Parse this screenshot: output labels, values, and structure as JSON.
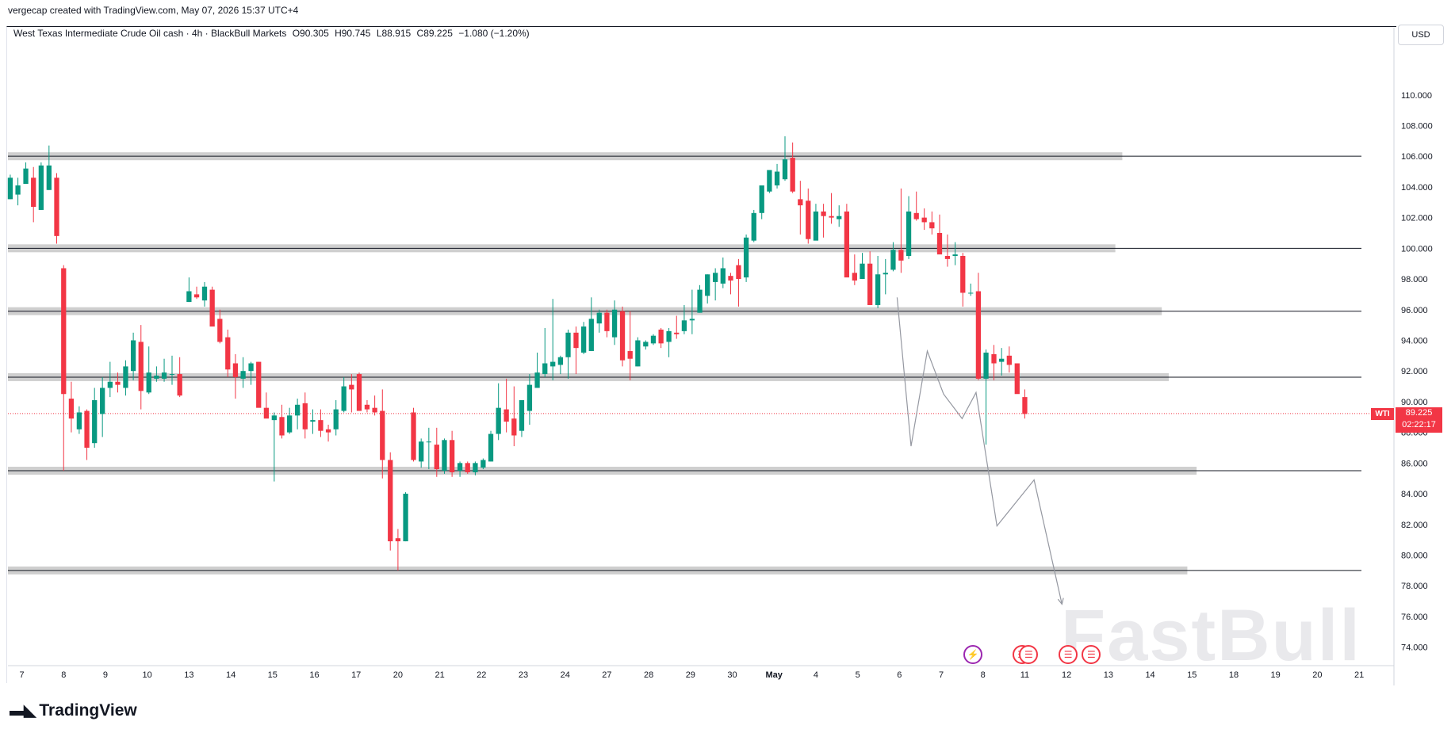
{
  "header": {
    "created_line": "vergecap created with TradingView.com, May 07, 2026 15:37 UTC+4",
    "instrument": "West Texas Intermediate Crude Oil cash · 4h · BlackBull Markets",
    "open": "O90.305",
    "high": "H90.745",
    "low": "L88.915",
    "close": "C89.225",
    "change": "−1.080 (−1.20%)"
  },
  "currency_button": "USD",
  "last_price": {
    "symbol": "WTI",
    "price": "89.225",
    "countdown": "02:22:17",
    "value": 89.225
  },
  "brand": {
    "logo_text": "TradingView",
    "watermark": "FastBull"
  },
  "colors": {
    "up": "#089981",
    "down": "#f23645",
    "zone": "#cfcfcf",
    "level_line": "#131722",
    "projection": "#9598a1"
  },
  "events": [
    {
      "x": 41.5,
      "icon": "lightning-icon",
      "color": "#9c27b0"
    },
    {
      "x": 43.6,
      "icon": "us-flag-icon",
      "color": "#f23645"
    },
    {
      "x": 43.9,
      "icon": "us-flag-icon",
      "color": "#f23645"
    },
    {
      "x": 45.6,
      "icon": "us-flag-icon",
      "color": "#f23645"
    },
    {
      "x": 46.6,
      "icon": "us-flag-icon",
      "color": "#f23645"
    }
  ],
  "chart_data": {
    "type": "candlestick",
    "timeframe": "4h",
    "ylim": [
      73,
      113.5
    ],
    "y_ticks": [
      74,
      76,
      78,
      80,
      82,
      84,
      86,
      88,
      90,
      92,
      94,
      96,
      98,
      100,
      102,
      104,
      106,
      108,
      110
    ],
    "y_tick_labels": [
      "74.000",
      "76.000",
      "78.000",
      "80.000",
      "82.000",
      "84.000",
      "86.000",
      "88.000",
      "90.000",
      "92.000",
      "94.000",
      "96.000",
      "98.000",
      "100.000",
      "102.000",
      "104.000",
      "106.000",
      "108.000",
      "110.000"
    ],
    "x_ticks": [
      {
        "label": "7",
        "x": 0.6
      },
      {
        "label": "8",
        "x": 2.4
      },
      {
        "label": "9",
        "x": 4.2
      },
      {
        "label": "10",
        "x": 6.0
      },
      {
        "label": "13",
        "x": 7.8
      },
      {
        "label": "14",
        "x": 9.6
      },
      {
        "label": "15",
        "x": 11.4
      },
      {
        "label": "16",
        "x": 13.2
      },
      {
        "label": "17",
        "x": 15.0
      },
      {
        "label": "20",
        "x": 16.8
      },
      {
        "label": "21",
        "x": 18.6
      },
      {
        "label": "22",
        "x": 20.4
      },
      {
        "label": "23",
        "x": 22.2
      },
      {
        "label": "24",
        "x": 24.0
      },
      {
        "label": "27",
        "x": 25.8
      },
      {
        "label": "28",
        "x": 27.6
      },
      {
        "label": "29",
        "x": 29.4
      },
      {
        "label": "30",
        "x": 31.2
      },
      {
        "label": "May",
        "x": 33.0
      },
      {
        "label": "4",
        "x": 34.8
      },
      {
        "label": "5",
        "x": 36.6
      },
      {
        "label": "6",
        "x": 38.4
      },
      {
        "label": "7",
        "x": 40.2
      },
      {
        "label": "8",
        "x": 42.0
      },
      {
        "label": "11",
        "x": 43.8
      },
      {
        "label": "12",
        "x": 45.6
      },
      {
        "label": "13",
        "x": 47.4
      },
      {
        "label": "14",
        "x": 49.2
      },
      {
        "label": "15",
        "x": 51.0
      },
      {
        "label": "18",
        "x": 52.8
      },
      {
        "label": "19",
        "x": 54.6
      },
      {
        "label": "20",
        "x": 56.4
      },
      {
        "label": "21",
        "x": 58.2
      }
    ],
    "x_range": [
      0,
      59.7
    ],
    "candles": [
      [
        0.1,
        104.8,
        103.2,
        103.2,
        104.6
      ],
      [
        0.43,
        104.6,
        102.8,
        103.5,
        104.1
      ],
      [
        0.77,
        105.6,
        104.2,
        104.2,
        105.2
      ],
      [
        1.1,
        105.3,
        101.7,
        104.6,
        102.7
      ],
      [
        1.43,
        105.6,
        102.5,
        102.5,
        105.4
      ],
      [
        1.77,
        106.7,
        103.8,
        103.8,
        105.4
      ],
      [
        2.1,
        104.9,
        100.3,
        104.6,
        100.8
      ],
      [
        2.4,
        98.9,
        85.5,
        98.7,
        90.5
      ],
      [
        2.73,
        91.3,
        88.0,
        90.2,
        88.9
      ],
      [
        3.07,
        89.7,
        87.9,
        88.2,
        89.3
      ],
      [
        3.4,
        89.5,
        86.2,
        89.4,
        87.0
      ],
      [
        3.73,
        90.9,
        87.0,
        87.3,
        90.1
      ],
      [
        4.07,
        91.6,
        87.7,
        89.2,
        90.9
      ],
      [
        4.4,
        92.6,
        90.3,
        90.9,
        91.3
      ],
      [
        4.73,
        91.9,
        90.6,
        91.3,
        91.1
      ],
      [
        5.07,
        92.7,
        90.4,
        90.9,
        92.3
      ],
      [
        5.4,
        94.5,
        91.4,
        92.0,
        94.0
      ],
      [
        5.73,
        95.0,
        89.5,
        93.9,
        90.7
      ],
      [
        6.07,
        93.6,
        90.5,
        90.6,
        91.9
      ],
      [
        6.4,
        92.3,
        91.3,
        91.5,
        91.7
      ],
      [
        6.73,
        92.8,
        91.3,
        91.5,
        91.9
      ],
      [
        7.07,
        93.0,
        91.1,
        91.8,
        91.8
      ],
      [
        7.4,
        92.9,
        90.3,
        91.8,
        90.4
      ],
      [
        7.8,
        98.1,
        96.5,
        96.5,
        97.2
      ],
      [
        8.13,
        97.5,
        96.7,
        97.0,
        96.8
      ],
      [
        8.47,
        97.8,
        96.2,
        96.6,
        97.5
      ],
      [
        8.8,
        97.5,
        95.6,
        97.3,
        94.9
      ],
      [
        9.13,
        96.0,
        93.8,
        95.4,
        93.9
      ],
      [
        9.47,
        94.7,
        91.6,
        94.2,
        92.1
      ],
      [
        9.8,
        93.1,
        90.2,
        92.5,
        91.6
      ],
      [
        10.13,
        92.9,
        90.9,
        91.5,
        92.0
      ],
      [
        10.47,
        92.6,
        91.1,
        92.0,
        92.5
      ],
      [
        10.8,
        92.6,
        90.1,
        92.6,
        89.6
      ],
      [
        11.13,
        90.6,
        89.0,
        89.6,
        88.9
      ],
      [
        11.47,
        89.3,
        84.8,
        88.8,
        89.1
      ],
      [
        11.8,
        89.8,
        87.6,
        89.0,
        87.8
      ],
      [
        12.13,
        89.6,
        87.9,
        88.0,
        89.1
      ],
      [
        12.47,
        90.2,
        88.2,
        89.1,
        89.8
      ],
      [
        12.8,
        90.6,
        87.6,
        89.9,
        88.2
      ],
      [
        13.13,
        89.5,
        87.9,
        88.7,
        88.8
      ],
      [
        13.47,
        89.5,
        87.7,
        88.8,
        88.1
      ],
      [
        13.8,
        88.5,
        87.4,
        88.2,
        88.0
      ],
      [
        14.13,
        90.1,
        87.8,
        88.2,
        89.5
      ],
      [
        14.47,
        91.6,
        89.3,
        89.4,
        91.0
      ],
      [
        14.8,
        91.8,
        89.3,
        91.1,
        90.8
      ],
      [
        15.13,
        91.9,
        89.7,
        91.8,
        89.4
      ],
      [
        15.47,
        90.1,
        89.3,
        89.8,
        89.5
      ],
      [
        15.8,
        90.4,
        89.1,
        89.6,
        89.3
      ],
      [
        16.13,
        90.8,
        85.0,
        89.4,
        86.2
      ],
      [
        16.47,
        86.7,
        80.3,
        86.2,
        80.9
      ],
      [
        16.8,
        81.7,
        79.0,
        81.1,
        80.9
      ],
      [
        17.13,
        84.1,
        80.9,
        80.9,
        84.0
      ],
      [
        17.47,
        89.6,
        86.1,
        89.3,
        86.2
      ],
      [
        17.8,
        87.6,
        85.7,
        86.1,
        87.4
      ],
      [
        18.13,
        88.3,
        85.6,
        87.4,
        87.4
      ],
      [
        18.47,
        88.3,
        85.1,
        87.2,
        85.6
      ],
      [
        18.8,
        87.6,
        85.3,
        85.5,
        87.5
      ],
      [
        19.13,
        88.1,
        85.1,
        87.5,
        85.4
      ],
      [
        19.47,
        86.1,
        85.1,
        85.5,
        86.0
      ],
      [
        19.8,
        86.1,
        85.3,
        86.0,
        85.4
      ],
      [
        20.13,
        86.1,
        85.2,
        85.4,
        86.0
      ],
      [
        20.47,
        86.3,
        85.6,
        85.7,
        86.2
      ],
      [
        20.8,
        88.1,
        86.1,
        86.1,
        87.9
      ],
      [
        21.13,
        91.2,
        87.5,
        87.9,
        89.6
      ],
      [
        21.47,
        91.5,
        88.0,
        89.5,
        88.7
      ],
      [
        21.8,
        91.0,
        87.1,
        88.9,
        87.8
      ],
      [
        22.13,
        90.1,
        87.7,
        88.1,
        90.1
      ],
      [
        22.47,
        91.8,
        88.5,
        89.4,
        91.1
      ],
      [
        22.8,
        93.2,
        90.9,
        90.9,
        91.9
      ],
      [
        23.13,
        94.8,
        91.6,
        91.8,
        92.5
      ],
      [
        23.47,
        96.7,
        91.4,
        92.3,
        92.6
      ],
      [
        23.8,
        93.0,
        91.8,
        92.4,
        92.9
      ],
      [
        24.13,
        94.7,
        91.5,
        92.9,
        94.5
      ],
      [
        24.47,
        94.9,
        91.8,
        94.5,
        93.5
      ],
      [
        24.8,
        95.2,
        93.1,
        93.2,
        94.9
      ],
      [
        25.13,
        96.8,
        93.3,
        93.3,
        95.4
      ],
      [
        25.47,
        96.0,
        94.5,
        95.1,
        95.8
      ],
      [
        25.8,
        96.0,
        94.2,
        95.8,
        94.6
      ],
      [
        26.13,
        96.6,
        93.7,
        94.2,
        96.0
      ],
      [
        26.47,
        96.2,
        92.3,
        95.9,
        92.7
      ],
      [
        26.8,
        95.9,
        91.4,
        93.3,
        92.8
      ],
      [
        27.13,
        94.2,
        92.3,
        92.3,
        94.0
      ],
      [
        27.47,
        94.0,
        93.4,
        93.6,
        93.9
      ],
      [
        27.8,
        94.4,
        93.7,
        93.8,
        94.3
      ],
      [
        28.13,
        94.8,
        93.5,
        94.7,
        93.8
      ],
      [
        28.47,
        94.8,
        92.9,
        93.9,
        94.6
      ],
      [
        28.8,
        95.6,
        94.1,
        94.5,
        94.4
      ],
      [
        29.13,
        96.3,
        94.4,
        94.6,
        95.3
      ],
      [
        29.47,
        97.3,
        94.4,
        95.3,
        95.4
      ],
      [
        29.8,
        97.6,
        95.8,
        95.8,
        97.3
      ],
      [
        30.13,
        98.3,
        96.4,
        96.9,
        98.3
      ],
      [
        30.47,
        98.7,
        96.6,
        97.8,
        98.4
      ],
      [
        30.8,
        99.4,
        97.4,
        97.7,
        98.7
      ],
      [
        31.13,
        98.4,
        97.0,
        98.2,
        97.9
      ],
      [
        31.47,
        99.3,
        96.2,
        98.9,
        98.0
      ],
      [
        31.8,
        100.9,
        97.8,
        98.1,
        100.7
      ],
      [
        32.13,
        102.5,
        100.4,
        100.5,
        102.3
      ],
      [
        32.47,
        103.8,
        101.9,
        102.3,
        104.1
      ],
      [
        32.8,
        104.9,
        103.6,
        103.7,
        105.1
      ],
      [
        33.13,
        105.5,
        103.9,
        104.1,
        105.0
      ],
      [
        33.47,
        107.3,
        104.4,
        104.5,
        105.8
      ],
      [
        33.8,
        106.9,
        103.6,
        105.9,
        103.7
      ],
      [
        34.13,
        104.4,
        100.9,
        103.2,
        102.8
      ],
      [
        34.47,
        103.9,
        100.3,
        103.1,
        100.6
      ],
      [
        34.8,
        102.9,
        100.6,
        100.5,
        102.4
      ],
      [
        35.13,
        102.9,
        100.7,
        102.4,
        102.1
      ],
      [
        35.47,
        103.6,
        101.6,
        102.1,
        102.0
      ],
      [
        35.8,
        102.8,
        101.4,
        101.9,
        102.1
      ],
      [
        36.13,
        102.9,
        99.6,
        102.4,
        98.1
      ],
      [
        36.47,
        99.6,
        97.6,
        98.4,
        97.9
      ],
      [
        36.8,
        99.7,
        98.0,
        98.0,
        99.0
      ],
      [
        37.13,
        99.8,
        96.3,
        99.0,
        96.3
      ],
      [
        37.47,
        99.5,
        96.1,
        96.3,
        98.3
      ],
      [
        37.8,
        99.3,
        97.0,
        98.3,
        98.4
      ],
      [
        38.13,
        100.4,
        98.5,
        98.6,
        99.9
      ],
      [
        38.47,
        103.9,
        98.4,
        99.9,
        99.2
      ],
      [
        38.8,
        103.4,
        99.3,
        99.5,
        102.4
      ],
      [
        39.13,
        103.7,
        101.8,
        102.3,
        101.9
      ],
      [
        39.47,
        102.6,
        101.2,
        102.0,
        101.7
      ],
      [
        39.8,
        102.4,
        100.9,
        101.7,
        101.3
      ],
      [
        40.13,
        102.2,
        99.7,
        101.0,
        99.6
      ],
      [
        40.47,
        100.9,
        98.8,
        99.5,
        99.3
      ],
      [
        40.8,
        100.4,
        98.9,
        99.5,
        99.6
      ],
      [
        41.13,
        99.7,
        96.2,
        99.5,
        97.1
      ],
      [
        41.47,
        97.7,
        96.9,
        97.1,
        97.1
      ],
      [
        41.8,
        98.4,
        91.4,
        97.2,
        91.5
      ],
      [
        42.13,
        93.4,
        87.2,
        91.5,
        93.2
      ],
      [
        42.47,
        93.7,
        91.4,
        93.1,
        92.5
      ],
      [
        42.8,
        93.5,
        91.7,
        92.6,
        92.8
      ],
      [
        43.13,
        93.6,
        91.9,
        93.0,
        92.4
      ],
      [
        43.47,
        92.5,
        90.6,
        92.5,
        90.5
      ],
      [
        43.8,
        90.8,
        88.9,
        90.3,
        89.2
      ]
    ],
    "zones": [
      {
        "y": 106.0,
        "x_end": 48.0,
        "line_x_end": 58.3
      },
      {
        "y": 100.0,
        "x_end": 47.7,
        "line_x_end": 58.3
      },
      {
        "y": 95.9,
        "x_end": 49.7,
        "line_x_end": 58.3
      },
      {
        "y": 91.6,
        "x_end": 50.0,
        "line_x_end": 58.3
      },
      {
        "y": 85.5,
        "x_end": 51.2,
        "line_x_end": 58.3
      },
      {
        "y": 79.0,
        "x_end": 50.8,
        "line_x_end": 58.3
      }
    ],
    "projection_path": [
      [
        38.3,
        96.8
      ],
      [
        38.9,
        87.1
      ],
      [
        39.6,
        93.3
      ],
      [
        40.3,
        90.5
      ],
      [
        41.1,
        88.9
      ],
      [
        41.7,
        90.6
      ],
      [
        42.6,
        81.9
      ],
      [
        44.2,
        84.9
      ],
      [
        45.4,
        76.8
      ]
    ]
  }
}
